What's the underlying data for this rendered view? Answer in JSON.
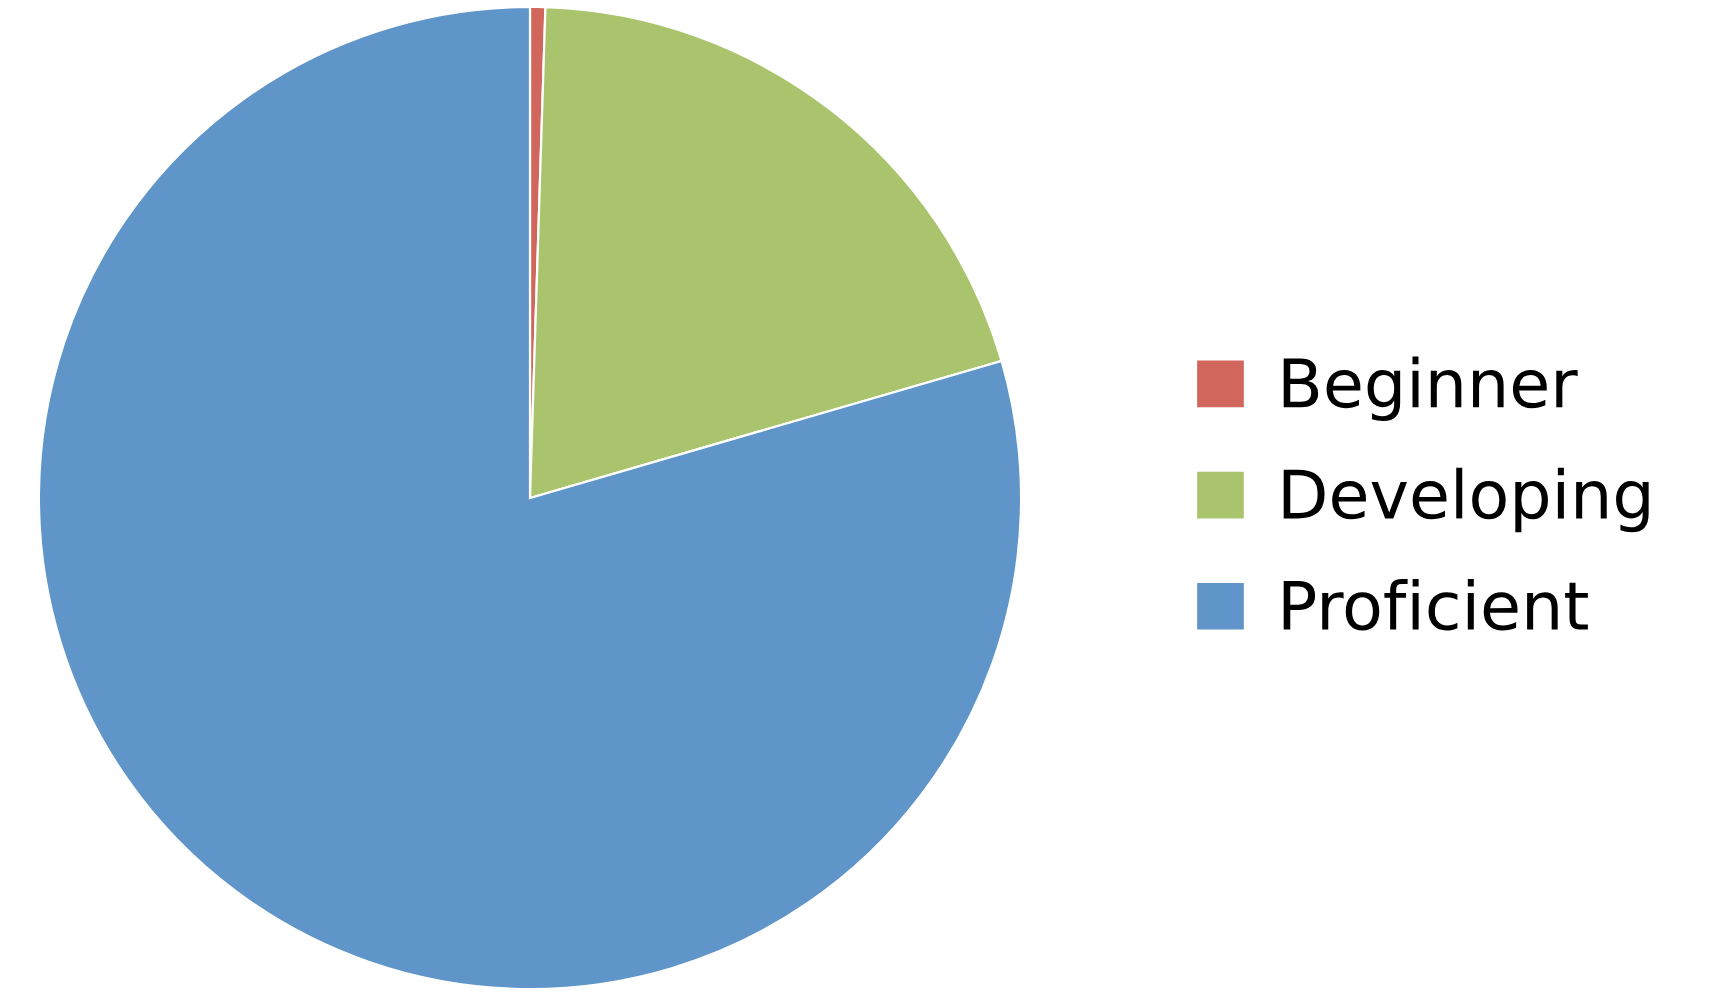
{
  "chart_data": {
    "type": "pie",
    "categories": [
      "Beginner",
      "Developing",
      "Proficient"
    ],
    "values": [
      0.5,
      20,
      79.5
    ],
    "colors": [
      "#d0665c",
      "#a9c46c",
      "#5f95c9"
    ],
    "legend": "right"
  }
}
